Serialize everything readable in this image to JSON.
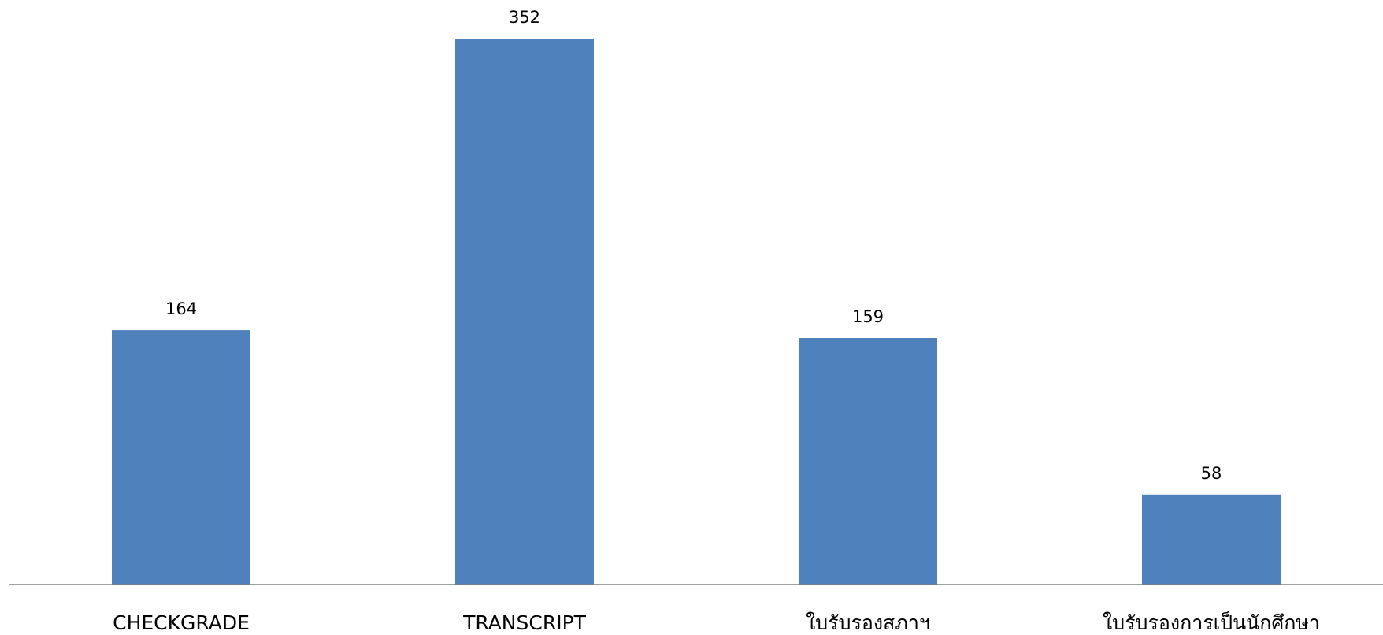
{
  "chart_data": {
    "type": "bar",
    "categories": [
      "CHECKGRADE",
      "TRANSCRIPT",
      "ใบรับรองสภาฯ",
      "ใบรับรองการเป็นนักศึกษา"
    ],
    "values": [
      164,
      352,
      159,
      58
    ],
    "title": "",
    "xlabel": "",
    "ylabel": "",
    "ylim": [
      0,
      352
    ],
    "data_labels": true,
    "grid": false,
    "legend": "none",
    "bar_color": "#4F81BD",
    "axis_color": "#808080"
  }
}
